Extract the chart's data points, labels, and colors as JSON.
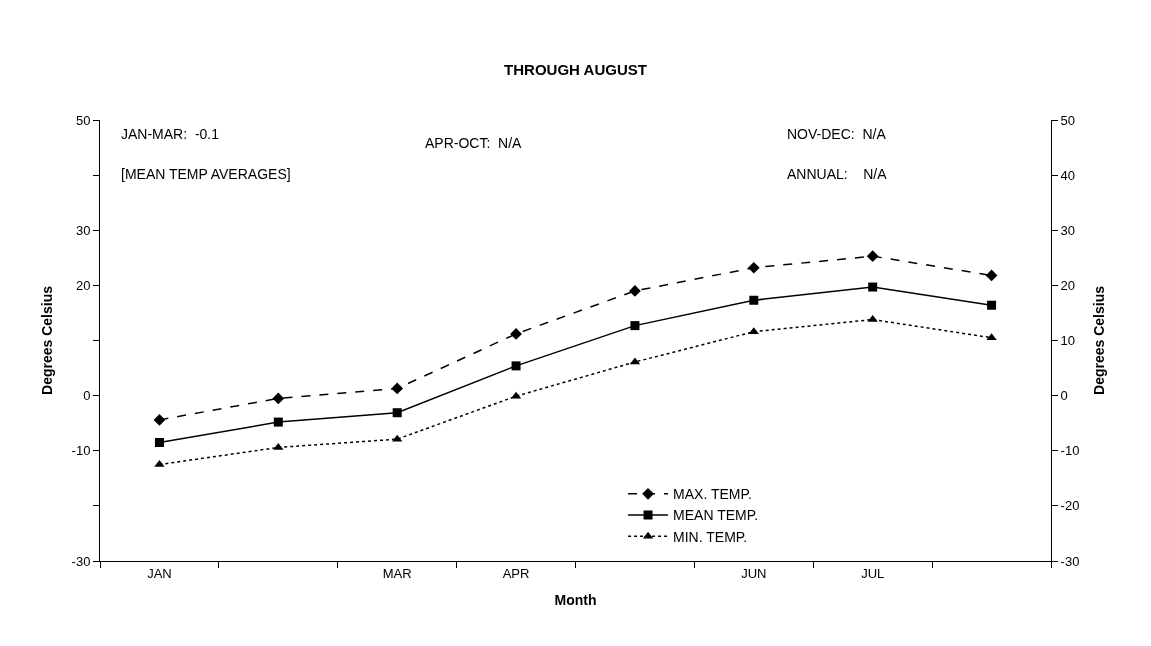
{
  "chart_data": {
    "type": "line",
    "title": "THROUGH AUGUST",
    "xlabel": "Month",
    "ylabel": "Degrees Celsius",
    "y2label": "Degrees Celsius",
    "categories": [
      "JAN",
      null,
      "MAR",
      "APR",
      null,
      "JUN",
      "JUL",
      null
    ],
    "series": [
      {
        "name": "MAX. TEMP.",
        "color": "#000000",
        "marker": "diamond",
        "line_style": "dashed",
        "values": [
          -4.4,
          -0.5,
          1.3,
          11.2,
          19.0,
          23.2,
          25.3,
          21.8
        ]
      },
      {
        "name": "MEAN TEMP.",
        "color": "#000000",
        "marker": "square",
        "line_style": "solid",
        "values": [
          -8.5,
          -4.8,
          -3.1,
          5.4,
          12.7,
          17.3,
          19.7,
          16.4
        ]
      },
      {
        "name": "MIN. TEMP.",
        "color": "#000000",
        "marker": "triangle",
        "line_style": "dotted",
        "values": [
          -12.5,
          -9.4,
          -7.9,
          -0.1,
          6.1,
          11.6,
          13.8,
          10.5
        ]
      }
    ],
    "ylim": [
      -30,
      50
    ],
    "yticks": [
      -30,
      {
        "value": -20,
        "label": null
      },
      -10,
      0,
      {
        "value": 10,
        "label": null
      },
      20,
      30,
      {
        "value": 40,
        "label": null
      },
      50
    ],
    "y2lim": [
      -30,
      50
    ],
    "y2ticks": [
      -30,
      -20,
      -10,
      0,
      10,
      20,
      30,
      40,
      50
    ],
    "annotations": [
      "JAN-MAR:  -0.1",
      "[MEAN TEMP AVERAGES]",
      "APR-OCT:  N/A",
      "NOV-DEC:  N/A",
      "ANNUAL:    N/A"
    ],
    "grid": false,
    "legend": "bottom"
  }
}
